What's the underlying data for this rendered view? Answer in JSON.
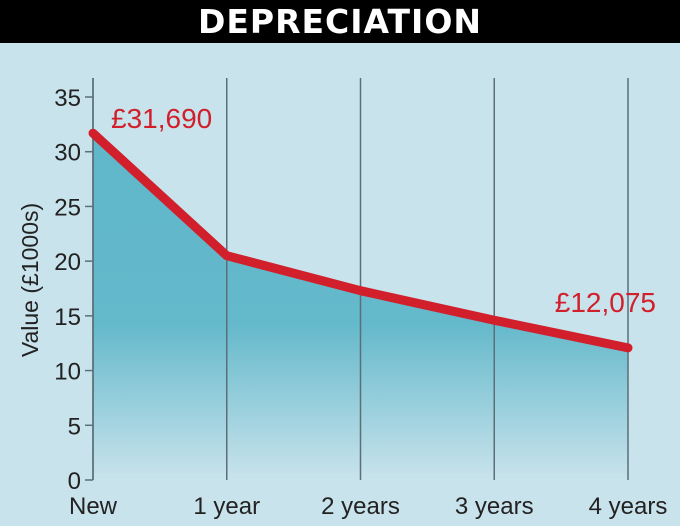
{
  "chart_data": {
    "type": "area",
    "title": "DEPRECIATION",
    "xlabel": "",
    "ylabel": "Value (£1000s)",
    "categories": [
      "New",
      "1 year",
      "2 years",
      "3 years",
      "4 years"
    ],
    "values": [
      31.69,
      20.5,
      17.3,
      14.6,
      12.075
    ],
    "ylim": [
      0,
      35
    ],
    "yticks": [
      0,
      5,
      10,
      15,
      20,
      25,
      30,
      35
    ],
    "grid": "vertical lines at categories",
    "annotations": [
      {
        "category": "New",
        "text": "£31,690"
      },
      {
        "category": "4 years",
        "text": "£12,075"
      }
    ],
    "colors": {
      "line": "#d11f2b",
      "fill": "#5fb7c9",
      "background": "#c9e3ec",
      "axis": "#5a6f78"
    }
  }
}
